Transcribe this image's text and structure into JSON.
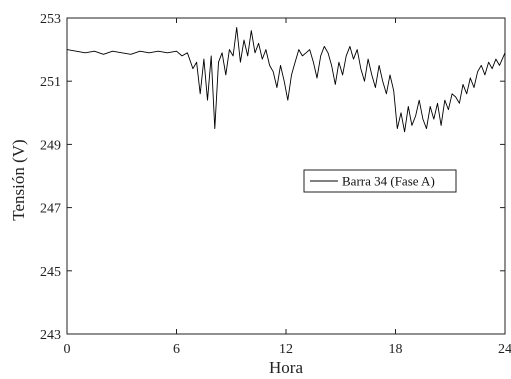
{
  "chart_data": {
    "type": "line",
    "xlabel": "Hora",
    "ylabel": "Tensión (V)",
    "xlim": [
      0,
      24
    ],
    "ylim": [
      243,
      253
    ],
    "xticks": [
      0,
      6,
      12,
      18,
      24
    ],
    "yticks": [
      243,
      245,
      247,
      249,
      251,
      253
    ],
    "grid": false,
    "legend_position": "center-right",
    "series": [
      {
        "name": "Barra 34 (Fase A)",
        "color": "#000000",
        "x": [
          0,
          0.5,
          1,
          1.5,
          2,
          2.5,
          3,
          3.5,
          4,
          4.5,
          5,
          5.5,
          6,
          6.3,
          6.6,
          6.9,
          7.1,
          7.3,
          7.5,
          7.7,
          7.9,
          8.1,
          8.3,
          8.5,
          8.7,
          8.9,
          9.1,
          9.3,
          9.5,
          9.7,
          9.9,
          10.1,
          10.3,
          10.5,
          10.7,
          10.9,
          11.1,
          11.3,
          11.5,
          11.7,
          11.9,
          12.1,
          12.3,
          12.5,
          12.7,
          12.9,
          13.1,
          13.3,
          13.5,
          13.7,
          13.9,
          14.1,
          14.3,
          14.5,
          14.7,
          14.9,
          15.1,
          15.3,
          15.5,
          15.7,
          15.9,
          16.1,
          16.3,
          16.5,
          16.7,
          16.9,
          17.1,
          17.3,
          17.5,
          17.7,
          17.9,
          18.1,
          18.3,
          18.5,
          18.7,
          18.9,
          19.1,
          19.3,
          19.5,
          19.7,
          19.9,
          20.1,
          20.3,
          20.5,
          20.7,
          20.9,
          21.1,
          21.3,
          21.5,
          21.7,
          21.9,
          22.1,
          22.3,
          22.5,
          22.7,
          22.9,
          23.1,
          23.3,
          23.5,
          23.7,
          24
        ],
        "y": [
          252.0,
          251.95,
          251.9,
          251.95,
          251.85,
          251.95,
          251.9,
          251.85,
          251.95,
          251.9,
          251.95,
          251.9,
          251.95,
          251.8,
          251.9,
          251.4,
          251.6,
          250.6,
          251.7,
          250.4,
          251.8,
          249.5,
          251.6,
          251.9,
          251.2,
          252.0,
          251.8,
          252.7,
          251.6,
          252.3,
          251.8,
          252.6,
          251.9,
          252.2,
          251.7,
          252.0,
          251.5,
          251.3,
          250.8,
          251.5,
          251.0,
          250.4,
          251.2,
          251.6,
          252.0,
          251.8,
          251.9,
          252.0,
          251.6,
          251.1,
          251.8,
          252.1,
          251.9,
          251.5,
          250.9,
          251.6,
          251.2,
          251.8,
          252.1,
          251.7,
          252.0,
          251.4,
          251.0,
          251.7,
          251.2,
          250.8,
          251.5,
          251.0,
          250.6,
          251.2,
          250.7,
          249.5,
          250.0,
          249.4,
          250.2,
          249.6,
          249.9,
          250.4,
          249.8,
          249.5,
          250.2,
          249.8,
          250.3,
          249.6,
          250.4,
          250.1,
          250.6,
          250.5,
          250.3,
          250.9,
          250.6,
          251.1,
          250.8,
          251.3,
          251.5,
          251.2,
          251.6,
          251.4,
          251.7,
          251.5,
          251.9
        ]
      }
    ]
  }
}
